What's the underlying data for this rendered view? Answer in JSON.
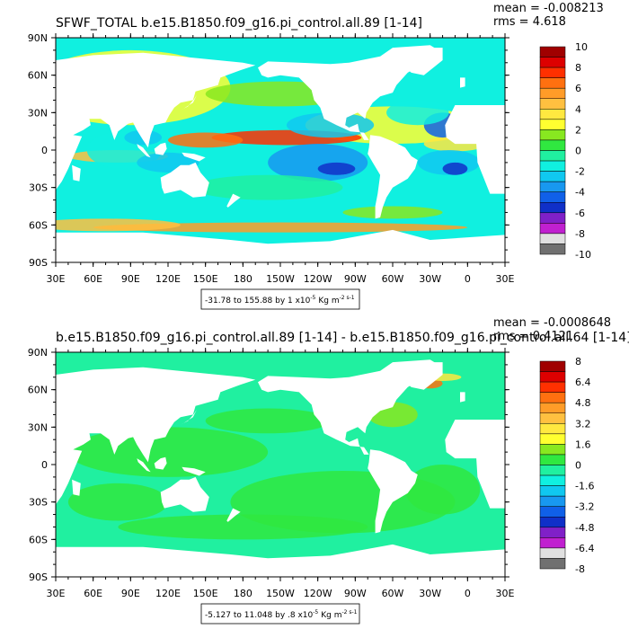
{
  "chart_data": [
    {
      "type": "heatmap",
      "title": "SFWF_TOTAL b.e15.B1850.f09_g16.pi_control.all.89 [1-14]",
      "stats": {
        "mean": "mean = -0.008213",
        "rms": "rms = 4.618"
      },
      "x_ticks": [
        "30E",
        "60E",
        "90E",
        "120E",
        "150E",
        "180",
        "150W",
        "120W",
        "90W",
        "60W",
        "30W",
        "0",
        "30E"
      ],
      "y_ticks": [
        "90N",
        "60N",
        "30N",
        "0",
        "30S",
        "60S",
        "90S"
      ],
      "xlim": [
        30,
        390
      ],
      "ylim": [
        -90,
        90
      ],
      "range_label": "-31.78 to 155.88 by 1 x10",
      "range_exp": "-5",
      "units": "Kg m",
      "units_exp": "-2 s-1",
      "colorbar_labels": [
        "10",
        "8",
        "6",
        "4",
        "2",
        "0",
        "-2",
        "-4",
        "-6",
        "-8",
        "-10"
      ],
      "colorbar_colors": [
        "#a00000",
        "#dd0000",
        "#ff3000",
        "#ff7010",
        "#ff9c28",
        "#ffc040",
        "#ffe840",
        "#ffff30",
        "#88e820",
        "#30e840",
        "#20f0a0",
        "#10f0e0",
        "#10c8f0",
        "#1898f0",
        "#1060e8",
        "#1030c8",
        "#8020c8",
        "#c020d0",
        "#e0e0e0",
        "#707070"
      ]
    },
    {
      "type": "heatmap",
      "title": "b.e15.B1850.f09_g16.pi_control.all.89 [1-14] - b.e15.B1850.f09_g16.pi_control.all.64 [1-14]",
      "stats": {
        "mean": "mean = -0.0008648",
        "rms": "rms = 0.4121"
      },
      "x_ticks": [
        "30E",
        "60E",
        "90E",
        "120E",
        "150E",
        "180",
        "150W",
        "120W",
        "90W",
        "60W",
        "30W",
        "0",
        "30E"
      ],
      "y_ticks": [
        "90N",
        "60N",
        "30N",
        "0",
        "30S",
        "60S",
        "90S"
      ],
      "xlim": [
        30,
        390
      ],
      "ylim": [
        -90,
        90
      ],
      "range_label": "-5.127 to 11.048 by .8 x10",
      "range_exp": "-5",
      "units": "Kg m",
      "units_exp": "-2 s-1",
      "colorbar_labels": [
        "8",
        "6.4",
        "4.8",
        "3.2",
        "1.6",
        "0",
        "-1.6",
        "-3.2",
        "-4.8",
        "-6.4",
        "-8"
      ],
      "colorbar_colors": [
        "#a00000",
        "#dd0000",
        "#ff3000",
        "#ff7010",
        "#ff9c28",
        "#ffc040",
        "#ffe840",
        "#ffff30",
        "#88e820",
        "#30e840",
        "#20f0a0",
        "#10f0e0",
        "#10c8f0",
        "#1898f0",
        "#1060e8",
        "#1030c8",
        "#8020c8",
        "#c020d0",
        "#e0e0e0",
        "#707070"
      ]
    }
  ]
}
